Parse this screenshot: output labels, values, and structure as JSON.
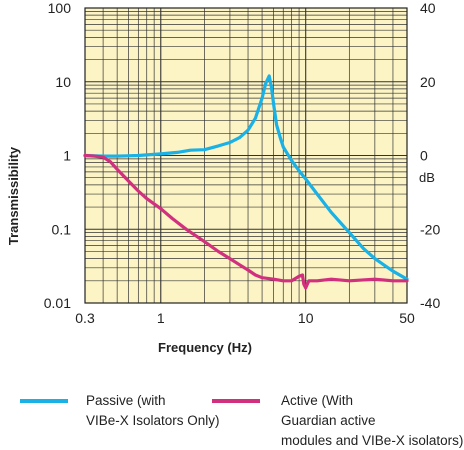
{
  "chart_data": {
    "type": "line",
    "xscale": "log",
    "yscale": "log",
    "xlim": [
      0.3,
      50
    ],
    "ylim": [
      0.01,
      100
    ],
    "y2lim": [
      -40,
      40
    ],
    "xlabel": "Frequency (Hz)",
    "ylabel": "Transmissibility",
    "y2unit": "dB",
    "x_ticks": [
      "0.3",
      "1",
      "10",
      "50"
    ],
    "y_ticks": [
      "0.01",
      "0.1",
      "1",
      "10",
      "100"
    ],
    "y2_ticks": [
      "-40",
      "-20",
      "0",
      "20",
      "40"
    ],
    "grid": true,
    "plot_background": "#fcf4c5",
    "grid_color": "#333333",
    "legend_placement": "bottom",
    "series": [
      {
        "name": "Passive (with VIBe-X Isolators Only)",
        "color": "#1ab1e6",
        "x": [
          0.3,
          0.4,
          0.5,
          0.7,
          1,
          1.3,
          1.6,
          2,
          2.5,
          3,
          3.5,
          4,
          4.5,
          5,
          5.3,
          5.6,
          5.8,
          6,
          6.3,
          6.7,
          7,
          8,
          9,
          10,
          12,
          15,
          20,
          25,
          30,
          40,
          50
        ],
        "y": [
          1.0,
          0.98,
          0.98,
          1.0,
          1.05,
          1.1,
          1.18,
          1.2,
          1.35,
          1.5,
          1.75,
          2.2,
          3.2,
          6.0,
          9.5,
          12.0,
          8.5,
          5.0,
          2.6,
          1.7,
          1.3,
          0.85,
          0.62,
          0.48,
          0.3,
          0.17,
          0.09,
          0.055,
          0.04,
          0.027,
          0.021
        ]
      },
      {
        "name": "Active (With Guardian active modules and VIBe-X isolators)",
        "color": "#d1307e",
        "x": [
          0.3,
          0.35,
          0.4,
          0.45,
          0.5,
          0.6,
          0.7,
          0.8,
          1,
          1.2,
          1.5,
          2,
          2.5,
          3,
          3.5,
          4,
          4.5,
          5,
          6,
          7,
          8,
          9,
          9.5,
          9.7,
          10,
          10.5,
          11,
          12,
          15,
          20,
          30,
          40,
          50
        ],
        "y": [
          1.0,
          0.98,
          0.95,
          0.82,
          0.65,
          0.45,
          0.33,
          0.26,
          0.19,
          0.14,
          0.1,
          0.068,
          0.05,
          0.04,
          0.033,
          0.028,
          0.024,
          0.022,
          0.021,
          0.02,
          0.02,
          0.023,
          0.024,
          0.018,
          0.016,
          0.02,
          0.02,
          0.02,
          0.021,
          0.02,
          0.021,
          0.02,
          0.02
        ]
      }
    ]
  }
}
